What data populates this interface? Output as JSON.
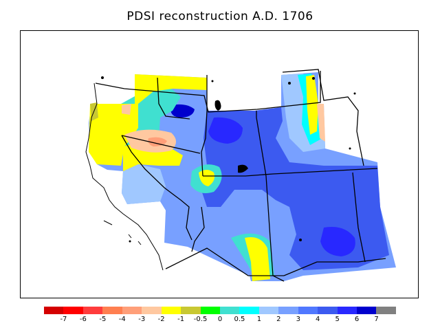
{
  "title": "PDSI reconstruction A.D. 1706",
  "colorbar": {
    "colors": [
      "#d40000",
      "#ff0000",
      "#ff3c3c",
      "#ff7f50",
      "#ff9f79",
      "#ffc8a0",
      "#ffff00",
      "#c8c832",
      "#00ff00",
      "#40e0d0",
      "#00ffff",
      "#a0c8ff",
      "#78a0ff",
      "#5078ff",
      "#3c5af0",
      "#2828ff",
      "#0000cd",
      "#808080"
    ],
    "tick_labels": [
      "-7",
      "-6",
      "-5",
      "-4",
      "-3",
      "-2",
      "-1",
      "-0.5",
      "0",
      "0.5",
      "1",
      "2",
      "3",
      "4",
      "5",
      "6",
      "7"
    ]
  }
}
